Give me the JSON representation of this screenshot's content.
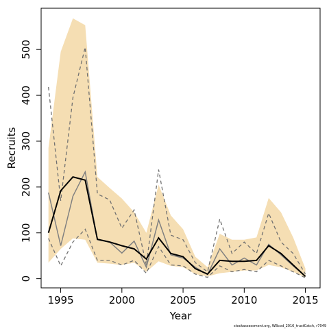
{
  "chart_data": {
    "type": "line",
    "xlabel": "Year",
    "ylabel": "Recruits",
    "xlim": [
      1993.4,
      2016.2
    ],
    "ylim": [
      -20,
      590
    ],
    "xticks": [
      1995,
      2000,
      2005,
      2010,
      2015
    ],
    "yticks": [
      0,
      100,
      200,
      300,
      400,
      500
    ],
    "grid": false,
    "x": [
      1994,
      1995,
      1996,
      1997,
      1998,
      1999,
      2000,
      2001,
      2002,
      2003,
      2004,
      2005,
      2006,
      2007,
      2008,
      2009,
      2010,
      2011,
      2012,
      2013,
      2014,
      2015
    ],
    "band": {
      "color": "#f5deb3",
      "lower": [
        35,
        65,
        88,
        85,
        35,
        33,
        30,
        35,
        15,
        38,
        28,
        25,
        10,
        5,
        12,
        15,
        18,
        18,
        30,
        25,
        15,
        3
      ],
      "upper": [
        285,
        495,
        568,
        553,
        222,
        198,
        175,
        145,
        100,
        205,
        138,
        108,
        48,
        25,
        98,
        85,
        85,
        90,
        176,
        145,
        90,
        22
      ]
    },
    "series": [
      {
        "values": [
          100,
          192,
          222,
          215,
          86,
          80,
          72,
          65,
          43,
          89,
          55,
          48,
          22,
          10,
          40,
          38,
          38,
          40,
          72,
          55,
          30,
          5
        ],
        "color": "#000000",
        "width": 2,
        "dash": ""
      },
      {
        "values": [
          188,
          72,
          180,
          233,
          85,
          80,
          56,
          82,
          25,
          128,
          52,
          45,
          25,
          9,
          65,
          30,
          45,
          30,
          75,
          52,
          28,
          5
        ],
        "color": "#808080",
        "width": 1.5,
        "dash": ""
      },
      {
        "values": [
          418,
          170,
          395,
          505,
          185,
          172,
          110,
          150,
          30,
          238,
          95,
          85,
          35,
          15,
          130,
          55,
          80,
          55,
          143,
          80,
          55,
          10
        ],
        "color": "#707070",
        "width": 1.3,
        "dash": "5,4"
      },
      {
        "values": [
          88,
          28,
          80,
          108,
          40,
          40,
          30,
          40,
          12,
          70,
          30,
          28,
          10,
          3,
          28,
          15,
          20,
          15,
          40,
          28,
          15,
          2
        ],
        "color": "#707070",
        "width": 1.3,
        "dash": "5,4"
      }
    ],
    "footnote": "stockassessment.org, WBcod_2016_trustCatch, r7049"
  }
}
